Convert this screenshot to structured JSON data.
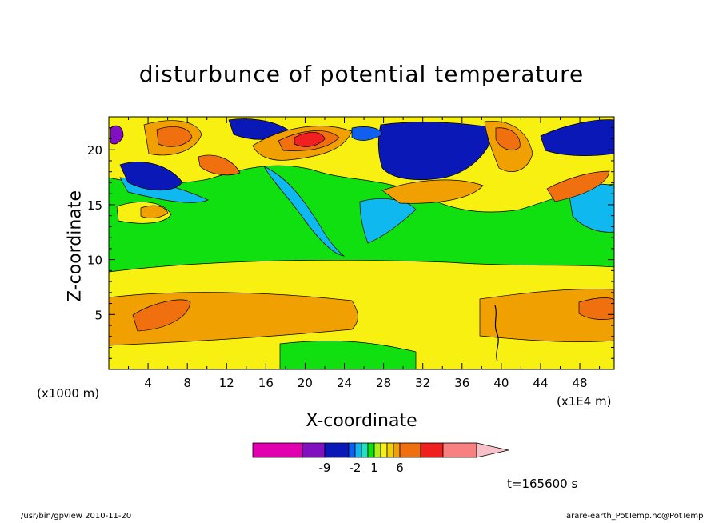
{
  "chart_data": {
    "type": "heatmap",
    "title": "disturbunce of potential temperature",
    "xlabel": "X-coordinate",
    "ylabel": "Z-coordinate",
    "x_unit_left": "(x1000 m)",
    "x_unit_right": "(x1E4 m)",
    "xlim": [
      0,
      51.5
    ],
    "ylim": [
      0,
      23
    ],
    "xticks": [
      "4",
      "8",
      "12",
      "16",
      "20",
      "24",
      "28",
      "32",
      "36",
      "40",
      "44",
      "48"
    ],
    "xtick_values": [
      4,
      8,
      12,
      16,
      20,
      24,
      28,
      32,
      36,
      40,
      44,
      48
    ],
    "yticks": [
      "5",
      "10",
      "15",
      "20"
    ],
    "ytick_values": [
      5,
      10,
      15,
      20
    ],
    "time_label": "t=165600 s",
    "colorbar": {
      "labels": [
        "-9",
        "-2",
        "1",
        "6"
      ],
      "colors": [
        "#e000b0",
        "#8010c0",
        "#0a18b8",
        "#1060f0",
        "#10b8f0",
        "#20e0c0",
        "#10e010",
        "#b0f010",
        "#f8f010",
        "#f0d000",
        "#f0a000",
        "#f07010",
        "#f02020",
        "#f88080",
        "#f8c0c8"
      ]
    },
    "colors": {
      "background_level": "#10e010",
      "upper_high": "#f07010",
      "upper_low": "#0a18b8",
      "middle_band": "#f8f010",
      "lower_band": "#f0a000"
    }
  },
  "footer": {
    "left": "/usr/bin/gpview   2010-11-20",
    "right": "arare-earth_PotTemp.nc@PotTemp"
  }
}
